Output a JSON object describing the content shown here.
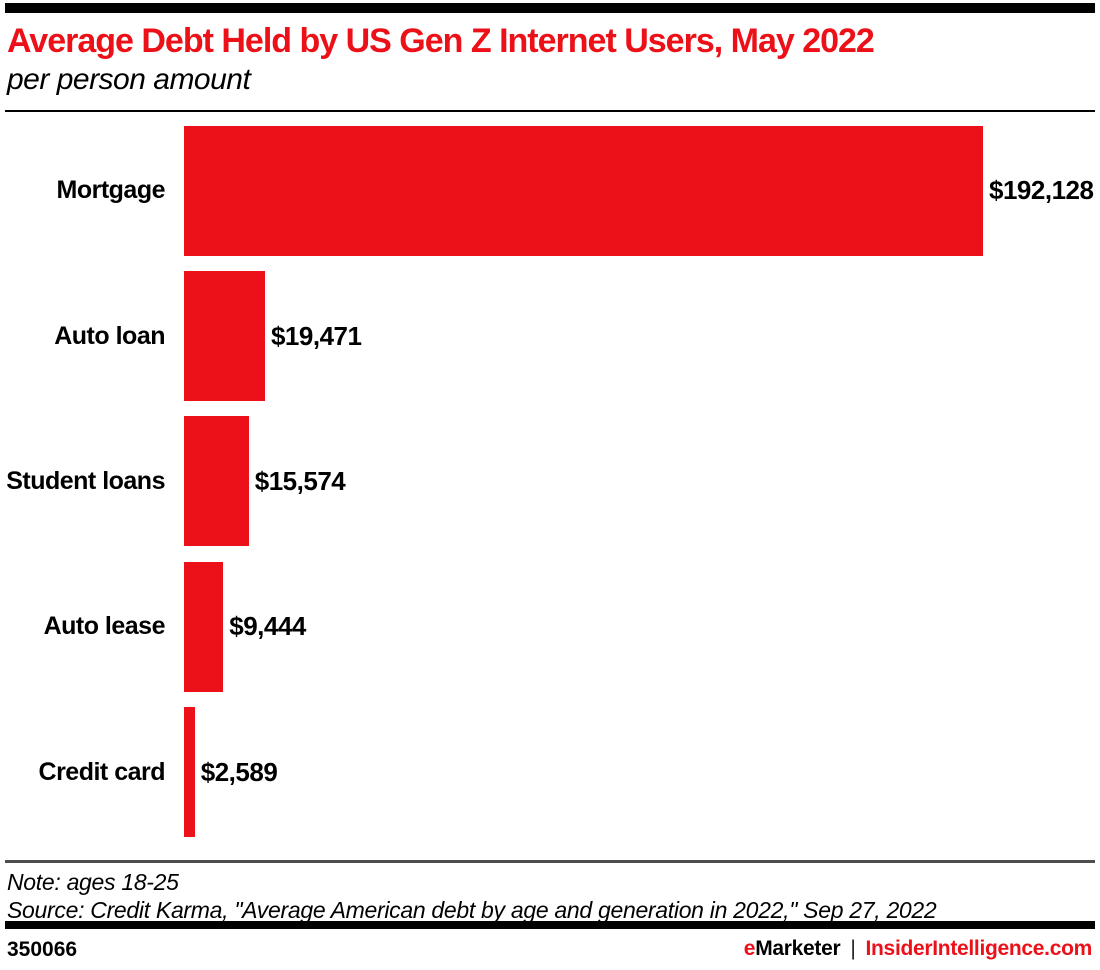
{
  "header": {
    "title": "Average Debt Held by US Gen Z Internet Users, May 2022",
    "subtitle": "per person amount"
  },
  "chart_data": {
    "type": "bar",
    "orientation": "horizontal",
    "categories": [
      "Mortgage",
      "Auto loan",
      "Student loans",
      "Auto lease",
      "Credit card"
    ],
    "values": [
      192128,
      19471,
      15574,
      9444,
      2589
    ],
    "value_labels": [
      "$192,128",
      "$19,471",
      "$15,574",
      "$9,444",
      "$2,589"
    ],
    "bar_color": "#EC1118",
    "xlim": [
      0,
      192128
    ],
    "grid": false,
    "legend": false
  },
  "footnotes": {
    "note": "Note: ages 18-25",
    "source": "Source: Credit Karma, \"Average American debt by age and generation in 2022,\" Sep 27, 2022"
  },
  "footer": {
    "chart_id": "350066",
    "brand_e": "e",
    "brand_marketer": "Marketer",
    "separator": "|",
    "brand_site": "InsiderIntelligence.com"
  },
  "colors": {
    "accent_red": "#EC1118",
    "rule_gray": "#4D4D4D",
    "bar_black": "#000000"
  }
}
